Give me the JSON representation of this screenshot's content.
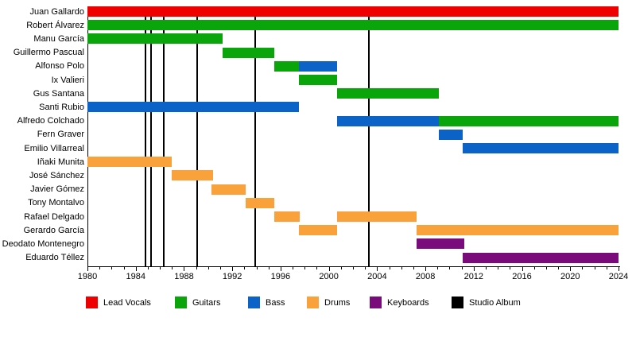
{
  "chart_data": {
    "type": "timeline-gantt",
    "description": "Band line-up timeline by member, role and years, with studio album release markers",
    "x_axis": {
      "min": 1980,
      "max": 2024,
      "major_tick_step": 4,
      "minor_tick_step": 1,
      "tick_labels": [
        "1980",
        "1984",
        "1988",
        "1992",
        "1996",
        "2000",
        "2004",
        "2008",
        "2012",
        "2016",
        "2020",
        "2024"
      ]
    },
    "grid": "off",
    "legend_position": "bottom",
    "colors": {
      "lead_vocals": "#ee0000",
      "guitars": "#0aa50a",
      "bass": "#0b63c8",
      "drums": "#f9a23b",
      "keyboards": "#7a0b7a",
      "studio_album": "#000000"
    },
    "legend": [
      {
        "key": "lead_vocals",
        "label": "Lead Vocals"
      },
      {
        "key": "guitars",
        "label": "Guitars"
      },
      {
        "key": "bass",
        "label": "Bass"
      },
      {
        "key": "drums",
        "label": "Drums"
      },
      {
        "key": "keyboards",
        "label": "Keyboards"
      },
      {
        "key": "studio_album",
        "label": "Studio Album"
      }
    ],
    "members": [
      {
        "name": "Juan Gallardo",
        "segments": [
          {
            "role": "lead_vocals",
            "start": 1980,
            "end": 2024
          }
        ]
      },
      {
        "name": "Robert Álvarez",
        "segments": [
          {
            "role": "guitars",
            "start": 1980,
            "end": 2024
          }
        ]
      },
      {
        "name": "Manu García",
        "segments": [
          {
            "role": "guitars",
            "start": 1980,
            "end": 1991.2
          }
        ]
      },
      {
        "name": "Guillermo Pascual",
        "segments": [
          {
            "role": "guitars",
            "start": 1991.2,
            "end": 1995.5
          }
        ]
      },
      {
        "name": "Alfonso Polo",
        "segments": [
          {
            "role": "guitars",
            "start": 1995.5,
            "end": 1997.5
          },
          {
            "role": "bass",
            "start": 1997.5,
            "end": 2000.7
          }
        ]
      },
      {
        "name": "Ix Valieri",
        "segments": [
          {
            "role": "guitars",
            "start": 1997.5,
            "end": 2000.7
          }
        ]
      },
      {
        "name": "Gus Santana",
        "segments": [
          {
            "role": "guitars",
            "start": 2000.7,
            "end": 2009.1
          }
        ]
      },
      {
        "name": "Santi Rubio",
        "segments": [
          {
            "role": "bass",
            "start": 1980,
            "end": 1997.5
          }
        ]
      },
      {
        "name": "Alfredo Colchado",
        "segments": [
          {
            "role": "bass",
            "start": 2000.7,
            "end": 2009.1
          },
          {
            "role": "guitars",
            "start": 2009.1,
            "end": 2024
          }
        ]
      },
      {
        "name": "Fern Graver",
        "segments": [
          {
            "role": "bass",
            "start": 2009.1,
            "end": 2011.1
          }
        ]
      },
      {
        "name": "Emilio Villarreal",
        "segments": [
          {
            "role": "bass",
            "start": 2011.1,
            "end": 2024
          }
        ]
      },
      {
        "name": "Iñaki Munita",
        "segments": [
          {
            "role": "drums",
            "start": 1980,
            "end": 1987
          }
        ]
      },
      {
        "name": "José Sánchez",
        "segments": [
          {
            "role": "drums",
            "start": 1987,
            "end": 1990.4
          }
        ]
      },
      {
        "name": "Javier Gómez",
        "segments": [
          {
            "role": "drums",
            "start": 1990.3,
            "end": 1993.1
          }
        ]
      },
      {
        "name": "Tony Montalvo",
        "segments": [
          {
            "role": "drums",
            "start": 1993.1,
            "end": 1995.5
          }
        ]
      },
      {
        "name": "Rafael Delgado",
        "segments": [
          {
            "role": "drums",
            "start": 1995.5,
            "end": 1997.6
          },
          {
            "role": "drums",
            "start": 2000.7,
            "end": 2007.3
          }
        ]
      },
      {
        "name": "Gerardo García",
        "segments": [
          {
            "role": "drums",
            "start": 1997.5,
            "end": 2000.7
          },
          {
            "role": "drums",
            "start": 2007.3,
            "end": 2024
          }
        ]
      },
      {
        "name": "Deodato Montenegro",
        "segments": [
          {
            "role": "keyboards",
            "start": 2007.3,
            "end": 2011.2
          }
        ]
      },
      {
        "name": "Eduardo Téllez",
        "segments": [
          {
            "role": "keyboards",
            "start": 2011.1,
            "end": 2024
          }
        ]
      }
    ],
    "studio_albums": [
      1984.8,
      1985.3,
      1986.3,
      1989.1,
      1993.9,
      2003.3
    ]
  }
}
